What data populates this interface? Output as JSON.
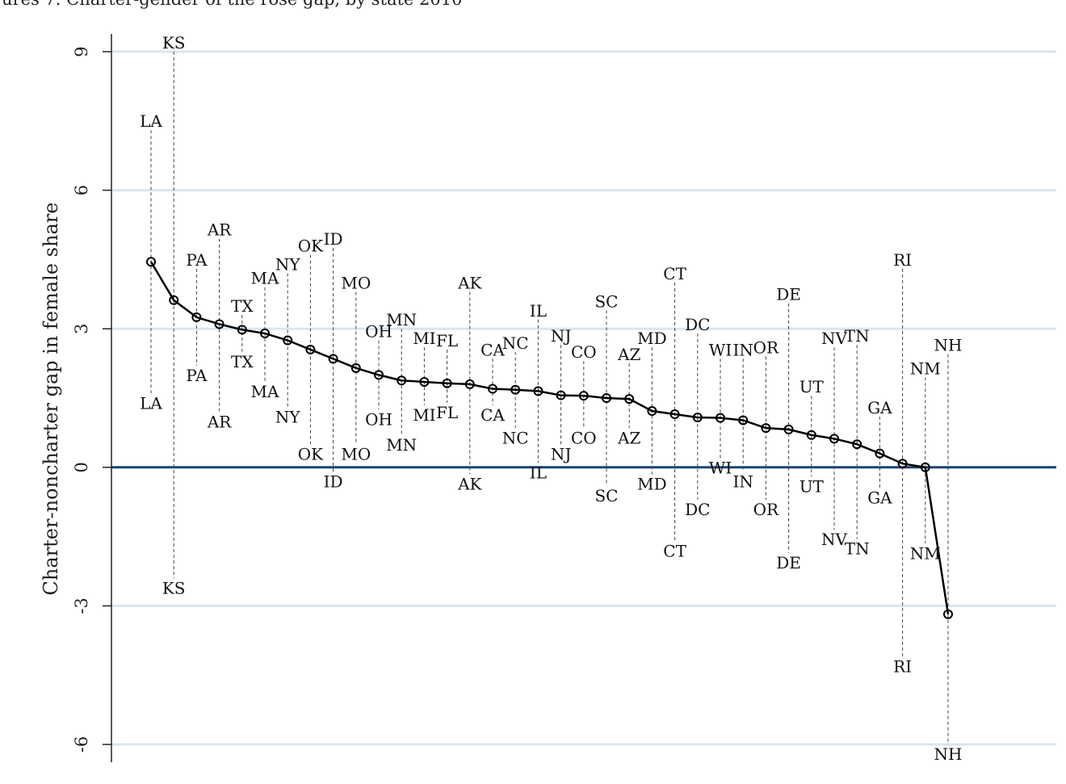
{
  "chart_data": {
    "type": "line",
    "title": "",
    "title_partial": "ures 7. Charter-gender of the rose gap, by state 2010",
    "ylabel": "Charter-noncharter gap in female share",
    "xlabel": "",
    "ylim": [
      -6,
      9
    ],
    "yticks": [
      -6,
      -3,
      0,
      3,
      6,
      9
    ],
    "grid": true,
    "reference_line": 0,
    "states": [
      "LA",
      "KS",
      "PA",
      "AR",
      "TX",
      "MA",
      "NY",
      "OK",
      "ID",
      "MO",
      "OH",
      "MN",
      "MI",
      "FL",
      "AK",
      "CA",
      "NC",
      "IL",
      "NJ",
      "CO",
      "SC",
      "AZ",
      "MD",
      "CT",
      "DC",
      "WI",
      "IN",
      "OR",
      "DE",
      "UT",
      "NV",
      "TN",
      "GA",
      "RI",
      "NM",
      "NH"
    ],
    "values": [
      4.45,
      3.62,
      3.25,
      3.1,
      2.98,
      2.9,
      2.75,
      2.55,
      2.35,
      2.15,
      2.0,
      1.88,
      1.85,
      1.82,
      1.8,
      1.7,
      1.68,
      1.65,
      1.56,
      1.55,
      1.5,
      1.48,
      1.22,
      1.15,
      1.08,
      1.07,
      1.02,
      0.85,
      0.82,
      0.7,
      0.62,
      0.5,
      0.3,
      0.08,
      0.0,
      -3.18
    ],
    "upper": [
      7.3,
      9.0,
      4.3,
      4.95,
      3.3,
      3.9,
      4.2,
      4.6,
      4.75,
      3.8,
      2.75,
      3.0,
      2.6,
      2.55,
      3.8,
      2.35,
      2.5,
      3.2,
      2.65,
      2.3,
      3.4,
      2.25,
      2.6,
      4.0,
      2.9,
      2.35,
      2.35,
      2.4,
      3.55,
      1.55,
      2.6,
      2.65,
      1.1,
      4.3,
      1.95,
      2.45
    ],
    "lower": [
      1.6,
      -2.4,
      2.2,
      1.2,
      2.5,
      1.85,
      1.3,
      0.5,
      -0.1,
      0.5,
      1.25,
      0.7,
      1.35,
      1.4,
      -0.15,
      1.35,
      0.85,
      0.1,
      0.5,
      0.85,
      -0.4,
      0.85,
      -0.15,
      -1.6,
      -0.7,
      0.2,
      -0.1,
      -0.7,
      -1.85,
      -0.2,
      -1.35,
      -1.55,
      -0.45,
      -4.1,
      -1.65,
      -6.0
    ]
  }
}
